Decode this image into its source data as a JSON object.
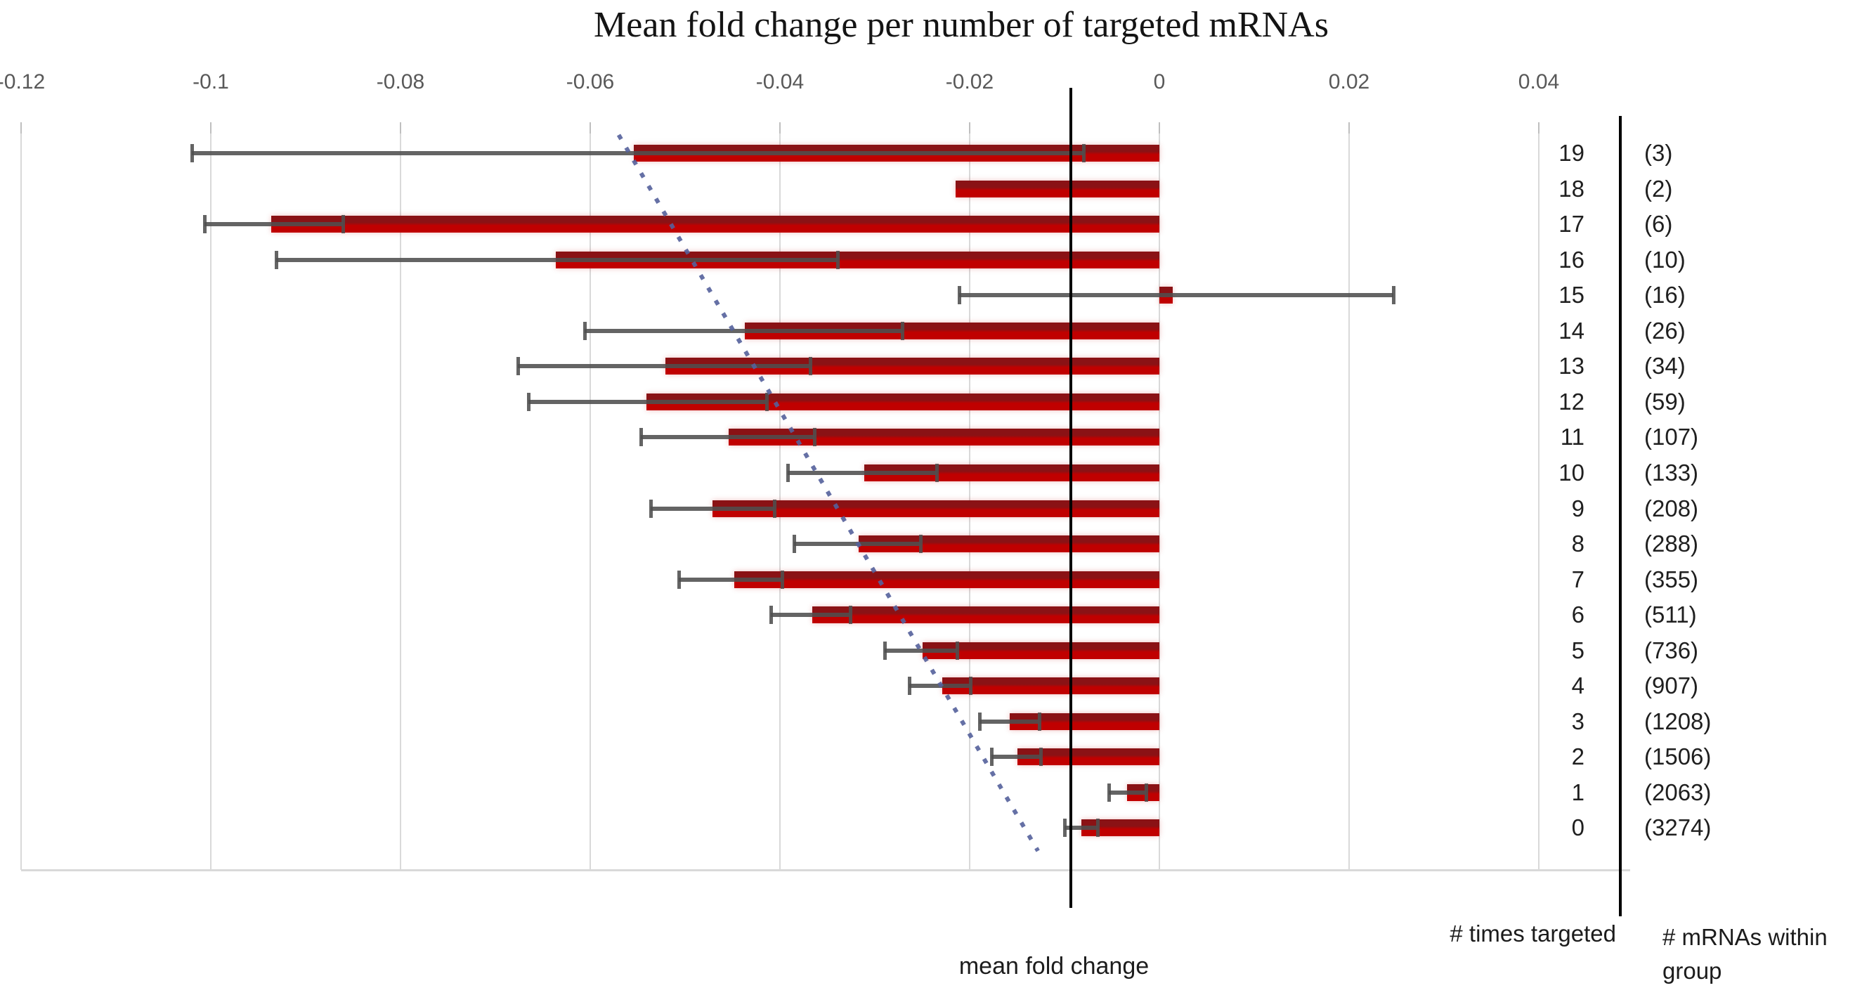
{
  "title": "Mean fold change per number of targeted mRNAs",
  "chart_data": {
    "type": "bar",
    "orientation": "horizontal",
    "title": "Mean fold change per number of targeted mRNAs",
    "x_axis": {
      "label": "mean fold change",
      "min": -0.12,
      "max": 0.05,
      "grid": true,
      "ticks": [
        {
          "label": "-0.12",
          "value": -0.12
        },
        {
          "label": "-0.1",
          "value": -0.1
        },
        {
          "label": "-0.08",
          "value": -0.08
        },
        {
          "label": "-0.06",
          "value": -0.06
        },
        {
          "label": "-0.04",
          "value": -0.04
        },
        {
          "label": "-0.02",
          "value": -0.02
        },
        {
          "label": "0",
          "value": 0
        },
        {
          "label": "0.02",
          "value": 0.02
        },
        {
          "label": "0.04",
          "value": 0.04
        }
      ]
    },
    "reference_line": {
      "value": -0.0093,
      "label": "mean fold change"
    },
    "trend_line": {
      "style": "dotted",
      "start_value": -0.057,
      "end_value": -0.0128
    },
    "columns": {
      "category_header": "# times targeted",
      "count_header": "# mRNAs within group"
    },
    "rows": [
      {
        "times_targeted": "19",
        "count_label": "(3)",
        "n": 3,
        "mean": -0.0554,
        "ci": [
          -0.102,
          -0.008
        ]
      },
      {
        "times_targeted": "18",
        "count_label": "(2)",
        "n": 2,
        "mean": -0.0215,
        "ci": null
      },
      {
        "times_targeted": "17",
        "count_label": "(6)",
        "n": 6,
        "mean": -0.0936,
        "ci": [
          -0.1007,
          -0.0861
        ]
      },
      {
        "times_targeted": "16",
        "count_label": "(10)",
        "n": 10,
        "mean": -0.0636,
        "ci": [
          -0.0931,
          -0.0339
        ]
      },
      {
        "times_targeted": "15",
        "count_label": "(16)",
        "n": 16,
        "mean": 0.0014,
        "ci": [
          -0.0211,
          0.0247
        ]
      },
      {
        "times_targeted": "14",
        "count_label": "(26)",
        "n": 26,
        "mean": -0.0437,
        "ci": [
          -0.0606,
          -0.0271
        ]
      },
      {
        "times_targeted": "13",
        "count_label": "(34)",
        "n": 34,
        "mean": -0.0521,
        "ci": [
          -0.0676,
          -0.0368
        ]
      },
      {
        "times_targeted": "12",
        "count_label": "(59)",
        "n": 59,
        "mean": -0.0541,
        "ci": [
          -0.0665,
          -0.0414
        ]
      },
      {
        "times_targeted": "11",
        "count_label": "(107)",
        "n": 107,
        "mean": -0.0454,
        "ci": [
          -0.0547,
          -0.0364
        ]
      },
      {
        "times_targeted": "10",
        "count_label": "(133)",
        "n": 133,
        "mean": -0.0311,
        "ci": [
          -0.0392,
          -0.0235
        ]
      },
      {
        "times_targeted": "9",
        "count_label": "(208)",
        "n": 208,
        "mean": -0.0471,
        "ci": [
          -0.0536,
          -0.0406
        ]
      },
      {
        "times_targeted": "8",
        "count_label": "(288)",
        "n": 288,
        "mean": -0.0317,
        "ci": [
          -0.0385,
          -0.0252
        ]
      },
      {
        "times_targeted": "7",
        "count_label": "(355)",
        "n": 355,
        "mean": -0.0448,
        "ci": [
          -0.0507,
          -0.0398
        ]
      },
      {
        "times_targeted": "6",
        "count_label": "(511)",
        "n": 511,
        "mean": -0.0366,
        "ci": [
          -0.041,
          -0.0326
        ]
      },
      {
        "times_targeted": "5",
        "count_label": "(736)",
        "n": 736,
        "mean": -0.025,
        "ci": [
          -0.029,
          -0.0213
        ]
      },
      {
        "times_targeted": "4",
        "count_label": "(907)",
        "n": 907,
        "mean": -0.0229,
        "ci": [
          -0.0264,
          -0.0199
        ]
      },
      {
        "times_targeted": "3",
        "count_label": "(1208)",
        "n": 1208,
        "mean": -0.0158,
        "ci": [
          -0.019,
          -0.0127
        ]
      },
      {
        "times_targeted": "2",
        "count_label": "(1506)",
        "n": 1506,
        "mean": -0.015,
        "ci": [
          -0.0177,
          -0.0125
        ]
      },
      {
        "times_targeted": "1",
        "count_label": "(2063)",
        "n": 2063,
        "mean": -0.0034,
        "ci": [
          -0.0053,
          -0.0014
        ]
      },
      {
        "times_targeted": "0",
        "count_label": "(3274)",
        "n": 3274,
        "mean": -0.0082,
        "ci": [
          -0.01,
          -0.0065
        ]
      }
    ],
    "colors": {
      "bar": "#c00000",
      "bar_dark": "#8a1215",
      "error_bar": "#4f4f4f",
      "trend": "#55619c",
      "grid": "#d9d9d9",
      "axis_text": "#595959",
      "text": "#1f1f1f",
      "reference_line": "#000000"
    }
  }
}
